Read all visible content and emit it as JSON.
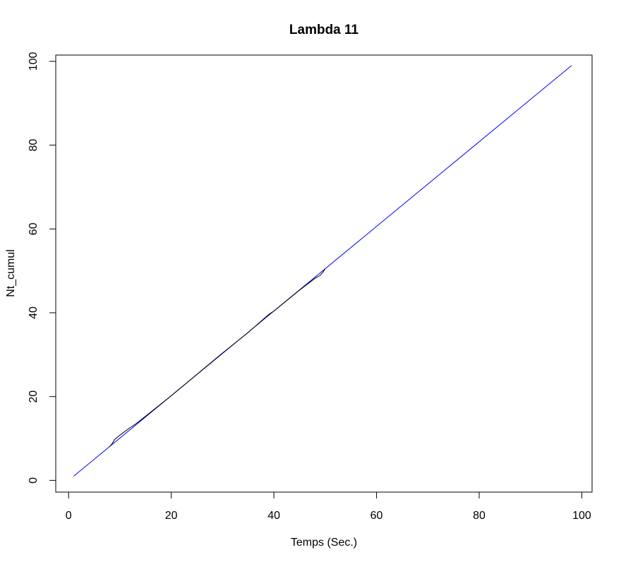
{
  "chart_data": {
    "type": "line",
    "title": "Lambda 11",
    "xlabel": "Temps (Sec.)",
    "ylabel": "Nt_cumul",
    "xlim": [
      -2.5,
      102.0
    ],
    "ylim": [
      -2.8,
      101.5
    ],
    "xticks": [
      0,
      20,
      40,
      60,
      80,
      100
    ],
    "yticks": [
      0,
      20,
      40,
      60,
      80,
      100
    ],
    "grid": false,
    "series": [
      {
        "color": "#0000ff",
        "x": [
          1,
          98
        ],
        "y": [
          1,
          99
        ]
      },
      {
        "color": "#000000",
        "x": [
          8,
          8.5,
          9,
          10,
          11,
          12,
          13,
          15,
          20,
          25,
          30,
          35,
          39,
          40,
          45,
          48,
          49,
          49.5,
          50
        ],
        "y": [
          8,
          8.8,
          9.8,
          10.8,
          11.7,
          12.6,
          13.4,
          15.3,
          20.2,
          25.3,
          30.4,
          35.3,
          39.6,
          40.4,
          45.4,
          48.2,
          48.9,
          49.6,
          50.5
        ]
      }
    ]
  }
}
